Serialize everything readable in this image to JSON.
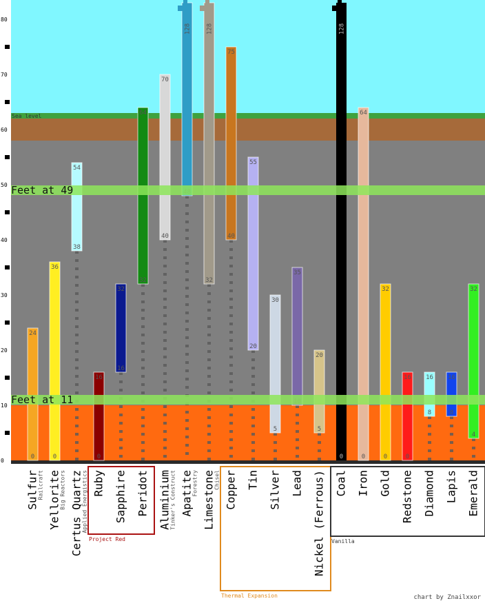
{
  "chart_data": {
    "type": "bar",
    "subtype": "floating-range",
    "title": "",
    "xlabel": "",
    "ylabel": "",
    "ylim": [
      0,
      80
    ],
    "yticks": [
      0,
      10,
      20,
      30,
      40,
      50,
      60,
      70,
      80
    ],
    "sea_level": 62,
    "sea_level_label": "Sea level",
    "lava_top": 10,
    "grass_top": 63,
    "dirt_bottom": 58,
    "feet_lines": [
      {
        "y": 49,
        "label": "Feet at 49"
      },
      {
        "y": 11,
        "label": "Feet at 11"
      }
    ],
    "credit": "chart by Znailxxor",
    "groups": [
      {
        "name": "Project Red",
        "color": "#aa1111",
        "from": 3,
        "to": 5
      },
      {
        "name": "Thermal Expansion",
        "color": "#e08a1e",
        "from": 9,
        "to": 13
      },
      {
        "name": "Vanilla",
        "color": "#333333",
        "from": 14,
        "to": 20
      }
    ],
    "ores": [
      {
        "name": "Sulfur",
        "mod": "Railcraft",
        "min": 0,
        "max": 24,
        "max_label": "24",
        "min_label": "0",
        "color": "#f5a623"
      },
      {
        "name": "Yellorite",
        "mod": "Big Reactors",
        "min": 0,
        "max": 36,
        "max_label": "36",
        "min_label": "0",
        "color": "#ffee22"
      },
      {
        "name": "Certus Quartz",
        "mod": "Applied Energistics",
        "min": 38,
        "max": 54,
        "max_label": "54",
        "min_label": "38",
        "color": "#b6fbff"
      },
      {
        "name": "Ruby",
        "mod": "",
        "min": 0,
        "max": 16,
        "max_label": "16",
        "min_label": "0",
        "color": "#8b0000"
      },
      {
        "name": "Sapphire",
        "mod": "",
        "min": 16,
        "max": 32,
        "max_label": "32",
        "min_label": "16",
        "color": "#0b1a8f"
      },
      {
        "name": "Peridot",
        "mod": "",
        "min": 32,
        "max": 64,
        "max_label": "64",
        "min_label": "32",
        "color": "#138a13"
      },
      {
        "name": "Aluminium",
        "mod": "Tinker's Construct",
        "min": 40,
        "max": 70,
        "max_label": "70",
        "min_label": "40",
        "color": "#d8d8d8"
      },
      {
        "name": "Apatite",
        "mod": "Forestry",
        "min": 48,
        "max": 128,
        "max_label": "128",
        "min_label": "48",
        "color": "#2e9dc6"
      },
      {
        "name": "Limestone",
        "mod": "Chisel",
        "min": 32,
        "max": 128,
        "max_label": "128",
        "min_label": "32",
        "color": "#a19a8a"
      },
      {
        "name": "Copper",
        "mod": "",
        "min": 40,
        "max": 75,
        "max_label": "75",
        "min_label": "40",
        "color": "#c8761f"
      },
      {
        "name": "Tin",
        "mod": "",
        "min": 20,
        "max": 55,
        "max_label": "55",
        "min_label": "20",
        "color": "#b5b1f2"
      },
      {
        "name": "Silver",
        "mod": "",
        "min": 5,
        "max": 30,
        "max_label": "30",
        "min_label": "5",
        "color": "#cdd8e4"
      },
      {
        "name": "Lead",
        "mod": "",
        "min": 10,
        "max": 35,
        "max_label": "35",
        "min_label": "10",
        "color": "#7a68a8"
      },
      {
        "name": "Nickel (Ferrous)",
        "mod": "",
        "min": 5,
        "max": 20,
        "max_label": "20",
        "min_label": "5",
        "color": "#d6c48a"
      },
      {
        "name": "Coal",
        "mod": "",
        "min": 0,
        "max": 128,
        "max_label": "128",
        "min_label": "0",
        "color": "#000000"
      },
      {
        "name": "Iron",
        "mod": "",
        "min": 0,
        "max": 64,
        "max_label": "64",
        "min_label": "0",
        "color": "#e6b89c"
      },
      {
        "name": "Gold",
        "mod": "",
        "min": 0,
        "max": 32,
        "max_label": "32",
        "min_label": "0",
        "color": "#ffcc00"
      },
      {
        "name": "Redstone",
        "mod": "",
        "min": 0,
        "max": 16,
        "max_label": "16",
        "min_label": "0",
        "color": "#ff1a1a"
      },
      {
        "name": "Diamond",
        "mod": "",
        "min": 8,
        "max": 16,
        "max_label": "16",
        "min_label": "8",
        "color": "#99ffff"
      },
      {
        "name": "Lapis",
        "mod": "",
        "min": 8,
        "max": 16,
        "max_label": "16",
        "min_label": "8",
        "color": "#1144ee"
      },
      {
        "name": "Emerald",
        "mod": "",
        "min": 4,
        "max": 32,
        "max_label": "32",
        "min_label": "4",
        "color": "#33ee22"
      }
    ]
  }
}
